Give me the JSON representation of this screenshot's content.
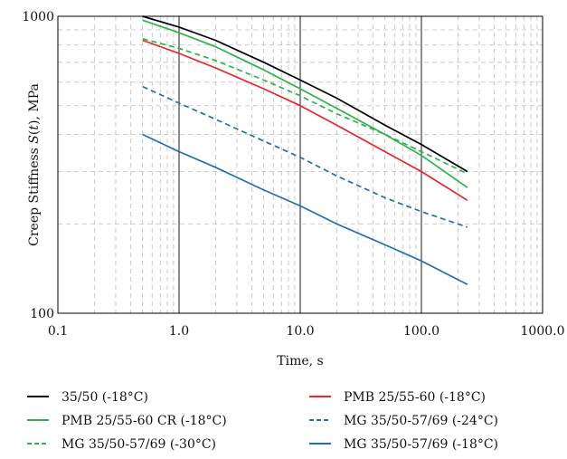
{
  "chart_data": {
    "type": "line",
    "title": "",
    "xlabel": "Time, s",
    "ylabel_prefix": "Creep Stiffness ",
    "ylabel_symbol": "S",
    "ylabel_arg": "(",
    "ylabel_t": "t",
    "ylabel_suffix": "), MPa",
    "xscale": "log",
    "yscale": "log",
    "xlim": [
      0.1,
      1000
    ],
    "ylim": [
      100,
      1000
    ],
    "x_ticks": [
      "0.1",
      "1.0",
      "10.0",
      "100.0",
      "1000.0"
    ],
    "y_ticks": [
      "100",
      "1000"
    ],
    "grid": "major solid, minor dashed",
    "legend_position": "bottom",
    "x": [
      0.5,
      1,
      2,
      5,
      10,
      20,
      50,
      100,
      240
    ],
    "series": [
      {
        "name": "35/50 (-18°C)",
        "color": "#000000",
        "dash": "solid",
        "values": [
          1000,
          920,
          830,
          700,
          610,
          530,
          430,
          370,
          300
        ]
      },
      {
        "name": "PMB 25/55-60 (-18°C)",
        "color": "#e8262b",
        "dash": "solid",
        "values": [
          830,
          750,
          670,
          570,
          500,
          430,
          350,
          300,
          240
        ]
      },
      {
        "name": "PMB 25/55-60 CR (-18°C)",
        "color": "#2db34a",
        "dash": "solid",
        "values": [
          970,
          880,
          790,
          660,
          570,
          490,
          400,
          340,
          265
        ]
      },
      {
        "name": "MG 35/50-57/69 (-24°C)",
        "color": "#1f6fb5",
        "dash": "dashed",
        "values": [
          580,
          510,
          450,
          380,
          335,
          290,
          245,
          220,
          195
        ]
      },
      {
        "name": "MG 35/50-57/69 (-30°C)",
        "color": "#2db34a",
        "dash": "dashed",
        "values": [
          840,
          780,
          710,
          610,
          540,
          470,
          400,
          350,
          295
        ]
      },
      {
        "name": "MG 35/50-57/69 (-18°C)",
        "color": "#1f6fb5",
        "dash": "solid",
        "values": [
          400,
          350,
          310,
          260,
          230,
          200,
          170,
          150,
          125
        ]
      }
    ]
  }
}
